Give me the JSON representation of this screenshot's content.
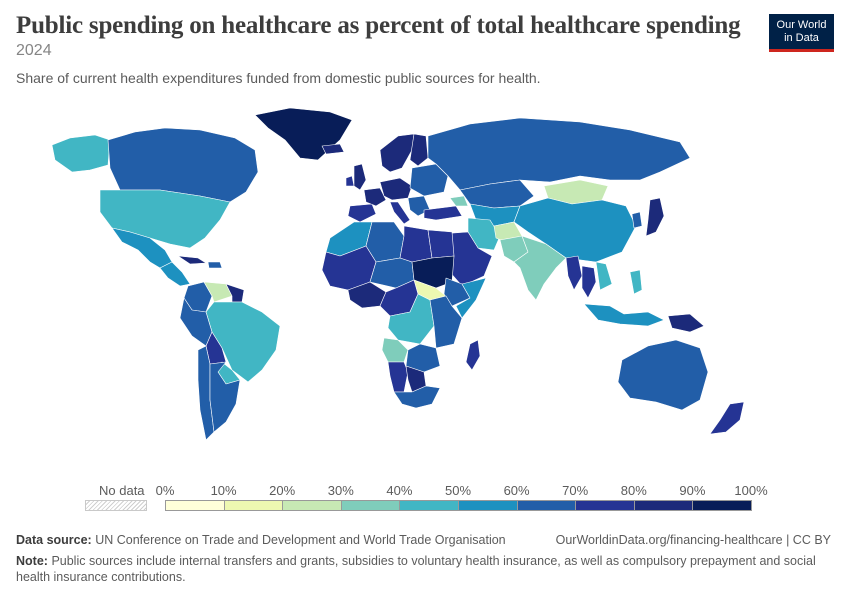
{
  "header": {
    "title": "Public spending on healthcare as percent of total healthcare spending",
    "year": "2024",
    "subtitle": "Share of current health expenditures funded from domestic public sources for health.",
    "logo_line1": "Our World",
    "logo_line2": "in Data"
  },
  "legend": {
    "no_data_label": "No data",
    "ticks": [
      "0%",
      "10%",
      "20%",
      "30%",
      "40%",
      "50%",
      "60%",
      "70%",
      "80%",
      "90%",
      "100%"
    ],
    "bin_colors": [
      "#ffffd9",
      "#edf8b1",
      "#c7e9b4",
      "#7fcdbb",
      "#41b6c4",
      "#1d91c0",
      "#225ea8",
      "#253494",
      "#1c2a7a",
      "#081d58"
    ]
  },
  "footer": {
    "source_label": "Data source:",
    "source_text": "UN Conference on Trade and Development and World Trade Organisation",
    "url": "OurWorldinData.org/financing-healthcare | CC BY",
    "note_label": "Note:",
    "note_text": "Public sources include internal transfers and grants, subsidies to voluntary health insurance, as well as compulsory prepayment and social health insurance contributions."
  },
  "chart_data": {
    "type": "choropleth",
    "title": "Public spending on healthcare as percent of total healthcare spending",
    "year": "2024",
    "unit": "%",
    "bins": [
      0,
      10,
      20,
      30,
      40,
      50,
      60,
      70,
      80,
      90,
      100
    ],
    "regions": [
      {
        "name": "Greenland",
        "value": 95
      },
      {
        "name": "Canada",
        "value": 62
      },
      {
        "name": "Alaska",
        "value": 45
      },
      {
        "name": "United States",
        "value": 46
      },
      {
        "name": "Mexico",
        "value": 52
      },
      {
        "name": "Central America",
        "value": 58
      },
      {
        "name": "Cuba",
        "value": 88
      },
      {
        "name": "Hispaniola",
        "value": 65
      },
      {
        "name": "Colombia",
        "value": 68
      },
      {
        "name": "Venezuela",
        "value": 25
      },
      {
        "name": "Guianas",
        "value": 85
      },
      {
        "name": "Brazil",
        "value": 45
      },
      {
        "name": "Peru",
        "value": 65
      },
      {
        "name": "Bolivia",
        "value": 70
      },
      {
        "name": "Paraguay",
        "value": 42
      },
      {
        "name": "Chile",
        "value": 60
      },
      {
        "name": "Argentina",
        "value": 62
      },
      {
        "name": "Iceland",
        "value": 82
      },
      {
        "name": "United Kingdom",
        "value": 82
      },
      {
        "name": "Ireland",
        "value": 75
      },
      {
        "name": "Spain",
        "value": 72
      },
      {
        "name": "France",
        "value": 83
      },
      {
        "name": "Central Europe",
        "value": 80
      },
      {
        "name": "Italy",
        "value": 75
      },
      {
        "name": "Scandinavia",
        "value": 85
      },
      {
        "name": "Finland",
        "value": 80
      },
      {
        "name": "Eastern Europe",
        "value": 65
      },
      {
        "name": "Balkans",
        "value": 62
      },
      {
        "name": "Russia",
        "value": 66
      },
      {
        "name": "Turkey",
        "value": 78
      },
      {
        "name": "Caucasus",
        "value": 30
      },
      {
        "name": "Kazakhstan",
        "value": 62
      },
      {
        "name": "Central Asia",
        "value": 55
      },
      {
        "name": "Mongolia",
        "value": 28
      },
      {
        "name": "China",
        "value": 55
      },
      {
        "name": "Korea",
        "value": 62
      },
      {
        "name": "Japan",
        "value": 84
      },
      {
        "name": "Arabian Peninsula",
        "value": 72
      },
      {
        "name": "Iran",
        "value": 49
      },
      {
        "name": "Afghanistan",
        "value": 28
      },
      {
        "name": "Pakistan",
        "value": 35
      },
      {
        "name": "India",
        "value": 38
      },
      {
        "name": "Myanmar",
        "value": 72
      },
      {
        "name": "Thailand",
        "value": 72
      },
      {
        "name": "Vietnam",
        "value": 48
      },
      {
        "name": "Indonesia",
        "value": 55
      },
      {
        "name": "Papua New Guinea",
        "value": 80
      },
      {
        "name": "Philippines",
        "value": 42
      },
      {
        "name": "Australia",
        "value": 68
      },
      {
        "name": "New Zealand",
        "value": 79
      },
      {
        "name": "North Africa West",
        "value": 58
      },
      {
        "name": "Algeria",
        "value": 62
      },
      {
        "name": "Libya",
        "value": 72
      },
      {
        "name": "Egypt",
        "value": 70
      },
      {
        "name": "Sahel West",
        "value": 72
      },
      {
        "name": "Sahel Central",
        "value": 60
      },
      {
        "name": "Sudan",
        "value": 95
      },
      {
        "name": "South Sudan",
        "value": 18
      },
      {
        "name": "Ethiopia",
        "value": 68
      },
      {
        "name": "Somalia",
        "value": 55
      },
      {
        "name": "Nigeria",
        "value": 82
      },
      {
        "name": "Central Africa",
        "value": 78
      },
      {
        "name": "DR Congo",
        "value": 45
      },
      {
        "name": "East Africa",
        "value": 68
      },
      {
        "name": "Angola",
        "value": 38
      },
      {
        "name": "Zambia",
        "value": 62
      },
      {
        "name": "Namibia",
        "value": 72
      },
      {
        "name": "Botswana",
        "value": 80
      },
      {
        "name": "South Africa",
        "value": 62
      },
      {
        "name": "Madagascar",
        "value": 72
      }
    ]
  }
}
